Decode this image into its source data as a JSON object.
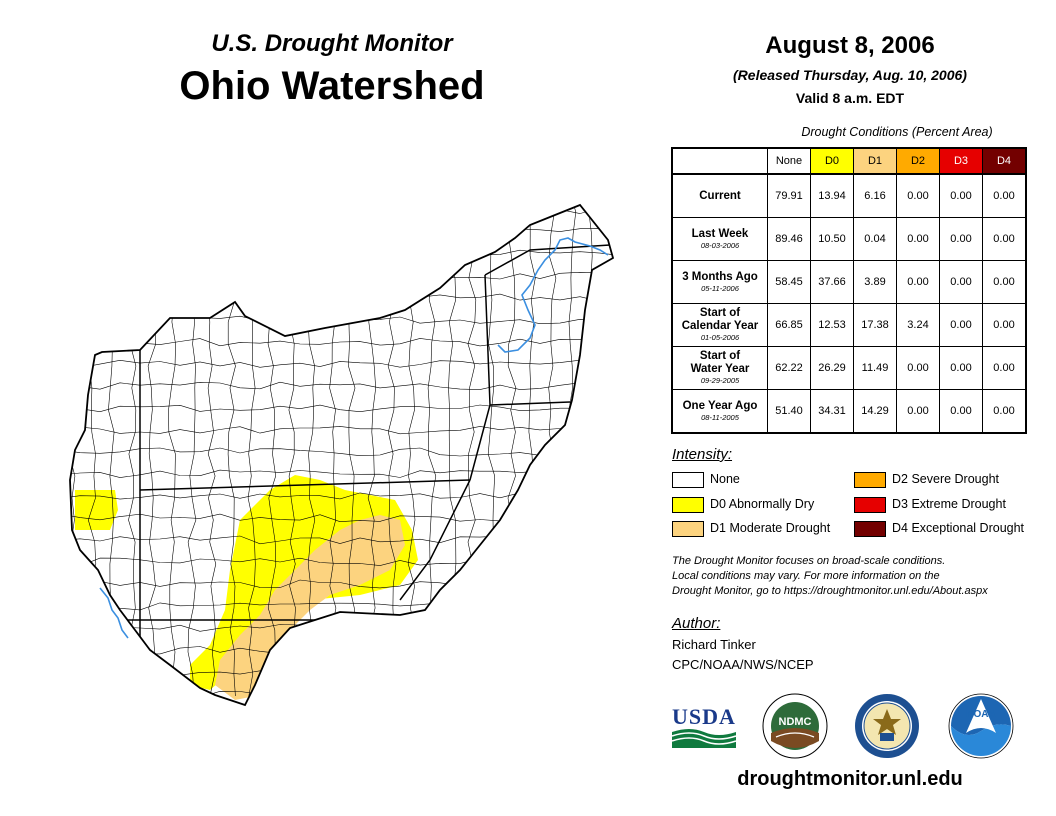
{
  "header": {
    "subtitle": "U.S. Drought Monitor",
    "title": "Ohio Watershed"
  },
  "date_block": {
    "date": "August 8, 2006",
    "released": "(Released Thursday, Aug. 10, 2006)",
    "valid": "Valid 8 a.m. EDT"
  },
  "table": {
    "caption": "Drought Conditions (Percent Area)",
    "columns": [
      {
        "label": "None",
        "color": "#ffffff"
      },
      {
        "label": "D0",
        "color": "#ffff00"
      },
      {
        "label": "D1",
        "color": "#fcd37f"
      },
      {
        "label": "D2",
        "color": "#ffaa00"
      },
      {
        "label": "D3",
        "color": "#e60000"
      },
      {
        "label": "D4",
        "color": "#730000"
      }
    ],
    "rows": [
      {
        "label": [
          "Current"
        ],
        "date": "",
        "values": [
          "79.91",
          "13.94",
          "6.16",
          "0.00",
          "0.00",
          "0.00"
        ]
      },
      {
        "label": [
          "Last Week"
        ],
        "date": "08-03-2006",
        "values": [
          "89.46",
          "10.50",
          "0.04",
          "0.00",
          "0.00",
          "0.00"
        ]
      },
      {
        "label": [
          "3 Months Ago"
        ],
        "date": "05-11-2006",
        "values": [
          "58.45",
          "37.66",
          "3.89",
          "0.00",
          "0.00",
          "0.00"
        ]
      },
      {
        "label": [
          "Start of",
          "Calendar Year"
        ],
        "date": "01-05-2006",
        "values": [
          "66.85",
          "12.53",
          "17.38",
          "3.24",
          "0.00",
          "0.00"
        ]
      },
      {
        "label": [
          "Start of",
          "Water Year"
        ],
        "date": "09-29-2005",
        "values": [
          "62.22",
          "26.29",
          "11.49",
          "0.00",
          "0.00",
          "0.00"
        ]
      },
      {
        "label": [
          "One Year Ago"
        ],
        "date": "08-11-2005",
        "values": [
          "51.40",
          "34.31",
          "14.29",
          "0.00",
          "0.00",
          "0.00"
        ]
      }
    ]
  },
  "legend": {
    "title": "Intensity:",
    "items": [
      {
        "label": "None",
        "color": "#ffffff"
      },
      {
        "label": "D0 Abnormally Dry",
        "color": "#ffff00"
      },
      {
        "label": "D1 Moderate Drought",
        "color": "#fcd37f"
      },
      {
        "label": "D2 Severe Drought",
        "color": "#ffaa00"
      },
      {
        "label": "D3 Extreme Drought",
        "color": "#e60000"
      },
      {
        "label": "D4 Exceptional Drought",
        "color": "#730000"
      }
    ]
  },
  "note": {
    "line1": "The Drought Monitor focuses on broad-scale conditions.",
    "line2": "Local conditions may vary. For more information on the",
    "line3": "Drought Monitor, go to https://droughtmonitor.unl.edu/About.aspx"
  },
  "author": {
    "title": "Author:",
    "name": "Richard Tinker",
    "org": "CPC/NOAA/NWS/NCEP"
  },
  "logos": {
    "usda": "USDA",
    "ndmc": "NDMC",
    "noaa": "NOAA"
  },
  "website": "droughtmonitor.unl.edu",
  "map": {
    "colors": {
      "none": "#ffffff",
      "d0": "#ffff00",
      "d1": "#fcd37f",
      "river": "#3b8fe0",
      "county_line": "#000000"
    }
  }
}
